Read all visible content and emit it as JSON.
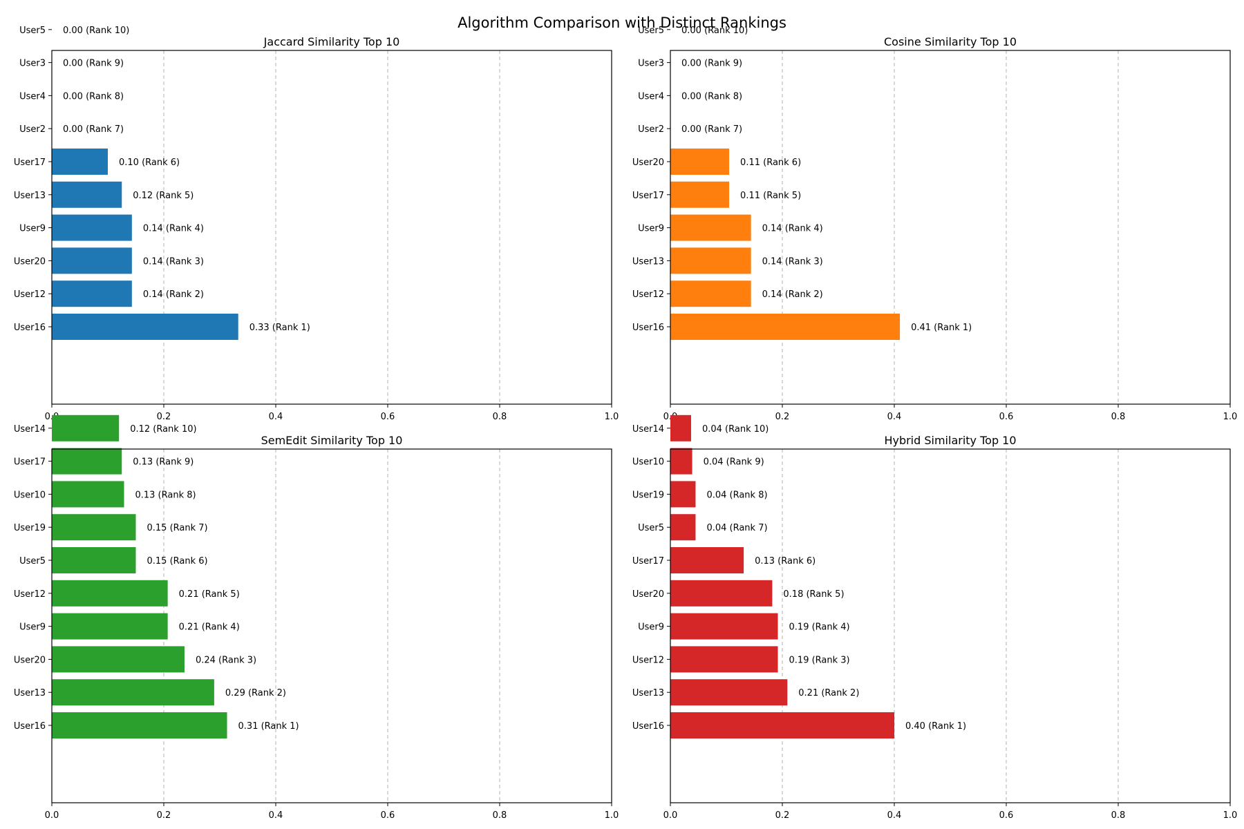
{
  "figure_title": "Algorithm Comparison with Distinct Rankings",
  "chart_data": [
    {
      "type": "bar",
      "orientation": "horizontal",
      "title": "Jaccard Similarity Top 10",
      "color": "#1f77b4",
      "xlim": [
        0,
        1
      ],
      "xticks": [
        "0.0",
        "0.2",
        "0.4",
        "0.6",
        "0.8",
        "1.0"
      ],
      "grid": "x-dashed",
      "categories": [
        "User16",
        "User12",
        "User20",
        "User9",
        "User13",
        "User17",
        "User2",
        "User4",
        "User3",
        "User5"
      ],
      "values": [
        0.333,
        0.143,
        0.143,
        0.143,
        0.125,
        0.1,
        0.0,
        0.0,
        0.0,
        0.0
      ],
      "labels": [
        "0.33 (Rank 1)",
        "0.14 (Rank 2)",
        "0.14 (Rank 3)",
        "0.14 (Rank 4)",
        "0.12 (Rank 5)",
        "0.10 (Rank 6)",
        "0.00 (Rank 7)",
        "0.00 (Rank 8)",
        "0.00 (Rank 9)",
        "0.00 (Rank 10)"
      ]
    },
    {
      "type": "bar",
      "orientation": "horizontal",
      "title": "Cosine Similarity Top 10",
      "color": "#ff7f0e",
      "xlim": [
        0,
        1
      ],
      "xticks": [
        "0.0",
        "0.2",
        "0.4",
        "0.6",
        "0.8",
        "1.0"
      ],
      "grid": "x-dashed",
      "categories": [
        "User16",
        "User12",
        "User13",
        "User9",
        "User17",
        "User20",
        "User2",
        "User4",
        "User3",
        "User5"
      ],
      "values": [
        0.41,
        0.144,
        0.144,
        0.144,
        0.105,
        0.105,
        0.0,
        0.0,
        0.0,
        0.0
      ],
      "labels": [
        "0.41 (Rank 1)",
        "0.14 (Rank 2)",
        "0.14 (Rank 3)",
        "0.14 (Rank 4)",
        "0.11 (Rank 5)",
        "0.11 (Rank 6)",
        "0.00 (Rank 7)",
        "0.00 (Rank 8)",
        "0.00 (Rank 9)",
        "0.00 (Rank 10)"
      ]
    },
    {
      "type": "bar",
      "orientation": "horizontal",
      "title": "SemEdit Similarity Top 10",
      "color": "#2ca02c",
      "xlim": [
        0,
        1
      ],
      "xticks": [
        "0.0",
        "0.2",
        "0.4",
        "0.6",
        "0.8",
        "1.0"
      ],
      "grid": "x-dashed",
      "categories": [
        "User16",
        "User13",
        "User20",
        "User9",
        "User12",
        "User5",
        "User19",
        "User10",
        "User17",
        "User14"
      ],
      "values": [
        0.313,
        0.29,
        0.237,
        0.207,
        0.207,
        0.15,
        0.15,
        0.129,
        0.125,
        0.12
      ],
      "labels": [
        "0.31 (Rank 1)",
        "0.29 (Rank 2)",
        "0.24 (Rank 3)",
        "0.21 (Rank 4)",
        "0.21 (Rank 5)",
        "0.15 (Rank 6)",
        "0.15 (Rank 7)",
        "0.13 (Rank 8)",
        "0.13 (Rank 9)",
        "0.12 (Rank 10)"
      ]
    },
    {
      "type": "bar",
      "orientation": "horizontal",
      "title": "Hybrid Similarity Top 10",
      "color": "#d62728",
      "xlim": [
        0,
        1
      ],
      "xticks": [
        "0.0",
        "0.2",
        "0.4",
        "0.6",
        "0.8",
        "1.0"
      ],
      "grid": "x-dashed",
      "categories": [
        "User16",
        "User13",
        "User12",
        "User9",
        "User20",
        "User17",
        "User5",
        "User19",
        "User10",
        "User14"
      ],
      "values": [
        0.4,
        0.209,
        0.192,
        0.192,
        0.182,
        0.131,
        0.045,
        0.045,
        0.039,
        0.037
      ],
      "labels": [
        "0.40 (Rank 1)",
        "0.21 (Rank 2)",
        "0.19 (Rank 3)",
        "0.19 (Rank 4)",
        "0.18 (Rank 5)",
        "0.13 (Rank 6)",
        "0.04 (Rank 7)",
        "0.04 (Rank 8)",
        "0.04 (Rank 9)",
        "0.04 (Rank 10)"
      ]
    }
  ]
}
